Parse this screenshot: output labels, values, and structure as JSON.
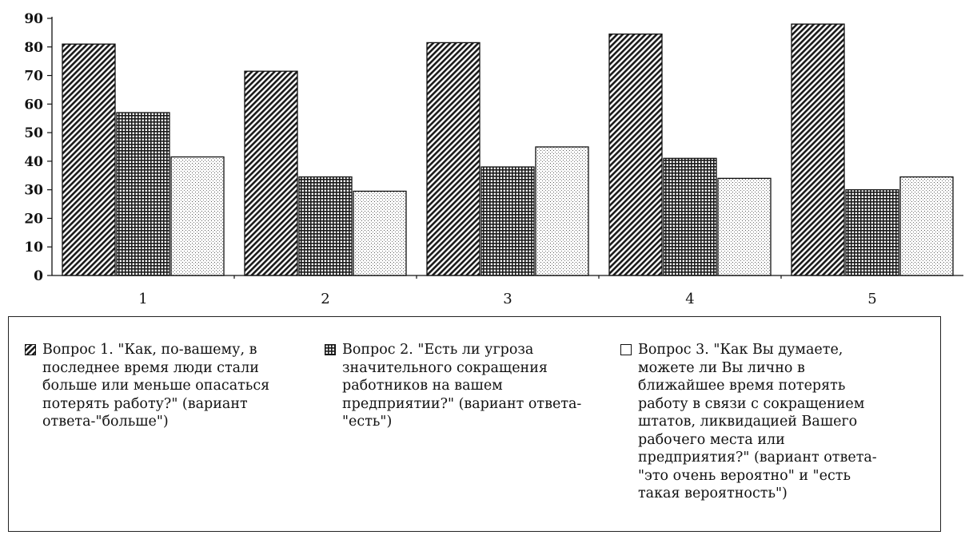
{
  "chart_data": {
    "type": "bar",
    "title": "",
    "xlabel": "",
    "ylabel": "",
    "ylim": [
      0,
      90
    ],
    "yticks": [
      0,
      10,
      20,
      30,
      40,
      50,
      60,
      70,
      80,
      90
    ],
    "categories": [
      "1",
      "2",
      "3",
      "4",
      "5"
    ],
    "grid": false,
    "legend_position": "bottom",
    "series": [
      {
        "pattern": "diagonal-hatch",
        "values": [
          81,
          71.5,
          81.5,
          84.5,
          88
        ]
      },
      {
        "pattern": "grid-hatch",
        "values": [
          57,
          34.5,
          38,
          41,
          30
        ]
      },
      {
        "pattern": "dotted",
        "values": [
          41.5,
          29.5,
          45,
          34,
          34.5
        ]
      }
    ],
    "legend": [
      "Вопрос  1. \"Как, по-вашему, в\nпоследнее время люди стали\nбольше или меньше опасаться\nпотерять работу?\" (вариант\nответа-\"больше\")",
      "Вопрос 2. \"Есть ли угроза\nзначительного сокращения\nработников на вашем\nпредприятии?\" (вариант ответа-\n\"есть\")",
      "Вопрос 3. \"Как Вы думаете,\nможете ли Вы лично в\nближайшее время потерять\nработу в связи с сокращением\nштатов, ликвидацией Вашего\nрабочего места или\nпредприятия?\" (вариант ответа-\n\"это очень вероятно\" и \"есть\nтакая вероятность\")"
    ],
    "colors": {
      "ink": "#111111",
      "background": "#ffffff"
    }
  }
}
